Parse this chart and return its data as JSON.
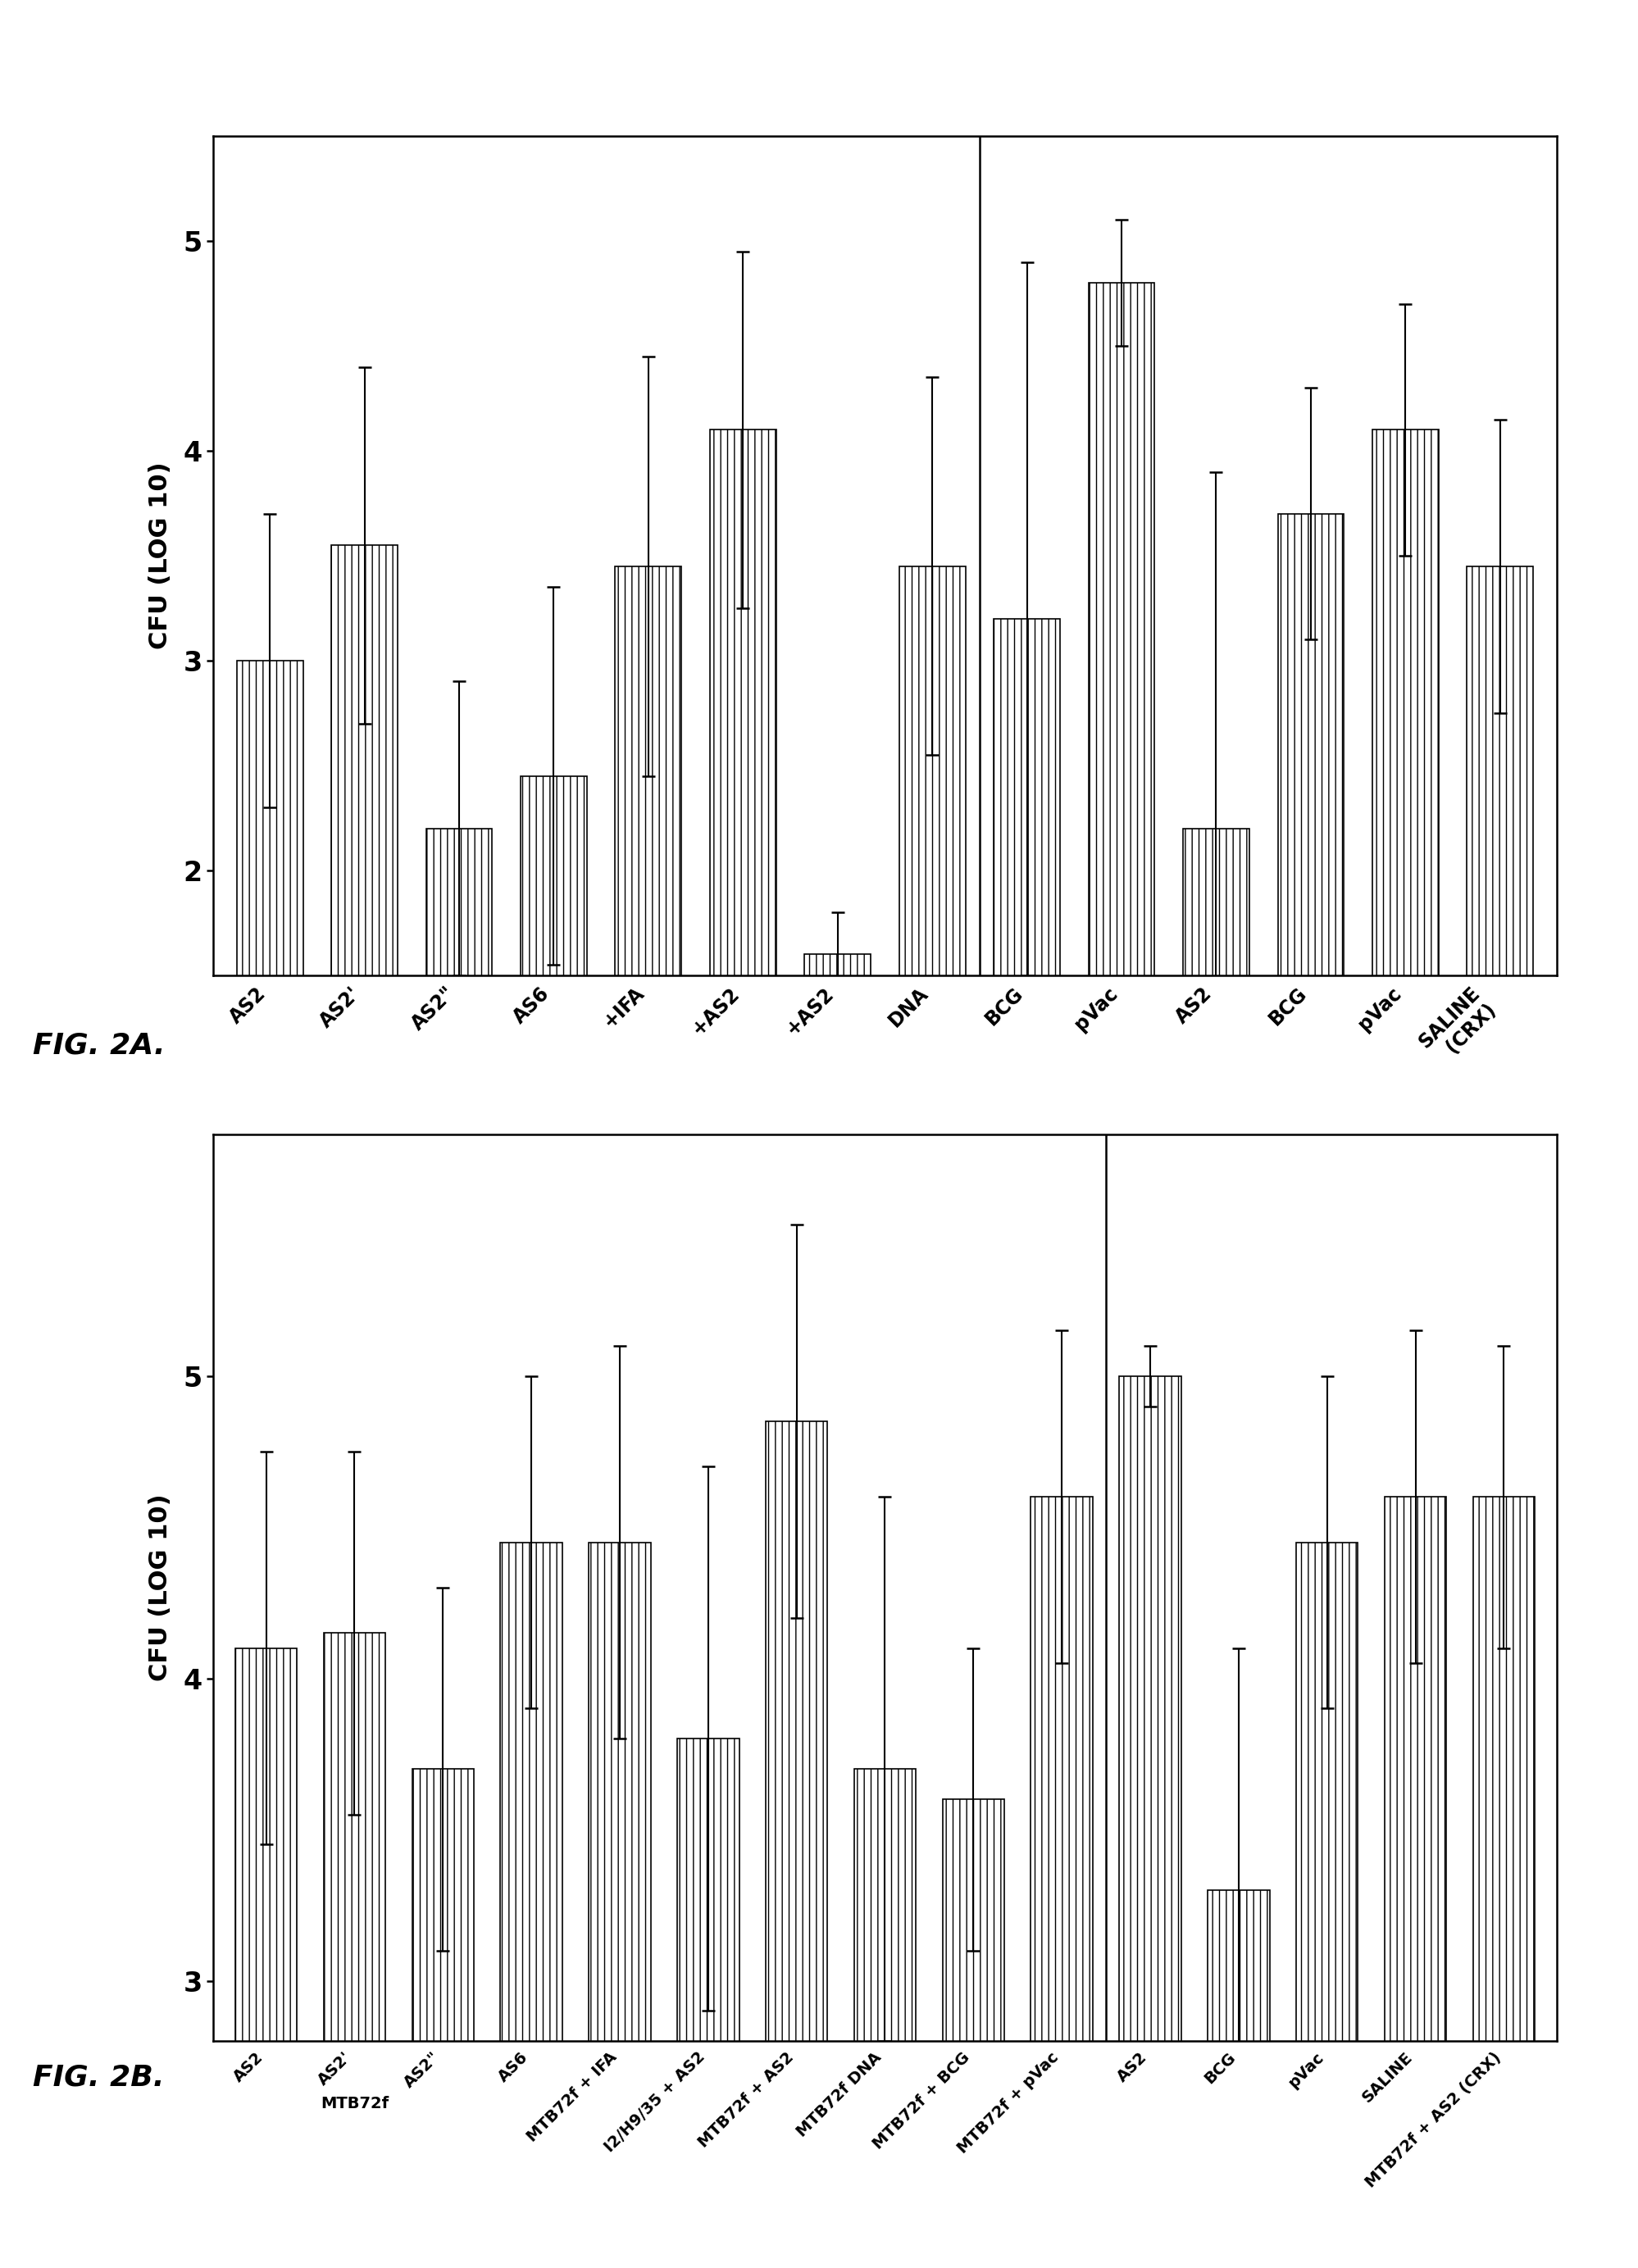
{
  "fig2a": {
    "values": [
      3.0,
      3.55,
      2.2,
      2.45,
      3.45,
      4.1,
      1.6,
      3.45,
      3.2,
      4.8,
      2.2,
      3.7,
      4.1,
      3.45
    ],
    "errors": [
      0.7,
      0.85,
      0.7,
      0.9,
      1.0,
      0.85,
      0.2,
      0.9,
      1.7,
      0.3,
      1.7,
      0.6,
      0.6,
      0.7
    ],
    "labels": [
      "AS2",
      "AS2'",
      "AS2\"\"",
      "AS6",
      "+IFA",
      "+AS2",
      "+AS2",
      "DNA",
      "BCG",
      "pVac",
      "AS2",
      "BCG",
      "pVac",
      "SALINE\n(CRX)"
    ],
    "divider_after": 8,
    "ylabel": "CFU (LOG 10)",
    "ylim": [
      1.5,
      5.5
    ],
    "yticks": [
      2,
      3,
      4,
      5
    ],
    "figname": "FIG. 2A."
  },
  "fig2b": {
    "values": [
      4.1,
      4.15,
      3.7,
      4.45,
      4.45,
      3.8,
      4.85,
      3.7,
      3.6,
      4.6,
      5.0,
      3.3,
      4.45,
      4.6,
      4.6
    ],
    "errors": [
      0.65,
      0.6,
      0.6,
      0.55,
      0.65,
      0.9,
      0.65,
      0.9,
      0.5,
      0.55,
      0.1,
      0.8,
      0.55,
      0.55,
      0.5
    ],
    "labels": [
      "AS2",
      "AS2'",
      "AS2\"\"",
      "AS6",
      "MTB72f + IFA",
      "I2/H9/35 + AS2",
      "MTB72f + AS2",
      "MTB72f DNA",
      "MTB72f + BCG",
      "MTB72f + pVac",
      "AS2",
      "BCG",
      "pVac",
      "SALINE",
      "MTB72f + AS2 (CRX)"
    ],
    "divider_after": 10,
    "ylabel": "CFU (LOG 10)",
    "ylim": [
      2.8,
      5.8
    ],
    "yticks": [
      3,
      4,
      5
    ],
    "figname": "FIG. 2B.",
    "mtb72f_label_idx": 1
  }
}
